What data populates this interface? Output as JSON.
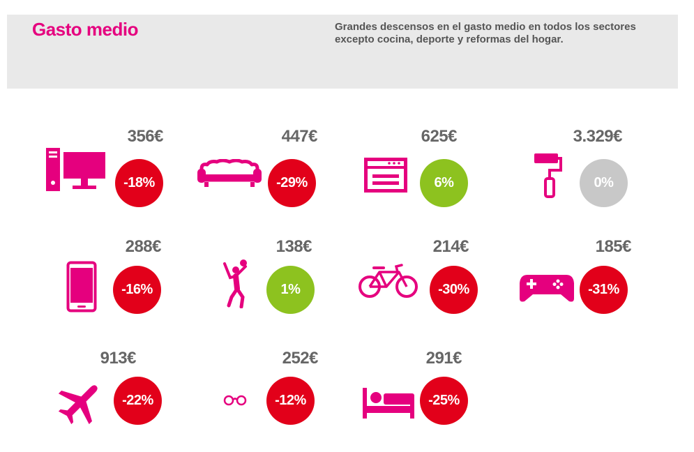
{
  "header": {
    "title": "Gasto medio",
    "subtitle": "Grandes descensos en el gasto medio en todos los sectores excepto cocina, deporte y reformas del hogar."
  },
  "colors": {
    "accent": "#e5007e",
    "negative": "#e2001a",
    "positive": "#8dc21f",
    "neutral": "#c8c8c8"
  },
  "items": [
    {
      "icon": "desktop-computer-icon",
      "amount": "356€",
      "change": "-18%",
      "trend": "negative"
    },
    {
      "icon": "sofa-icon",
      "amount": "447€",
      "change": "-29%",
      "trend": "negative"
    },
    {
      "icon": "oven-icon",
      "amount": "625€",
      "change": "6%",
      "trend": "positive"
    },
    {
      "icon": "paint-roller-icon",
      "amount": "3.329€",
      "change": "0%",
      "trend": "neutral"
    },
    {
      "icon": "smartphone-icon",
      "amount": "288€",
      "change": "-16%",
      "trend": "negative"
    },
    {
      "icon": "sport-player-icon",
      "amount": "138€",
      "change": "1%",
      "trend": "positive"
    },
    {
      "icon": "bicycle-icon",
      "amount": "214€",
      "change": "-30%",
      "trend": "negative"
    },
    {
      "icon": "gamepad-icon",
      "amount": "185€",
      "change": "-31%",
      "trend": "negative"
    },
    {
      "icon": "airplane-icon",
      "amount": "913€",
      "change": "-22%",
      "trend": "negative"
    },
    {
      "icon": "glasses-icon",
      "amount": "252€",
      "change": "-12%",
      "trend": "negative"
    },
    {
      "icon": "bed-icon",
      "amount": "291€",
      "change": "-25%",
      "trend": "negative"
    }
  ]
}
